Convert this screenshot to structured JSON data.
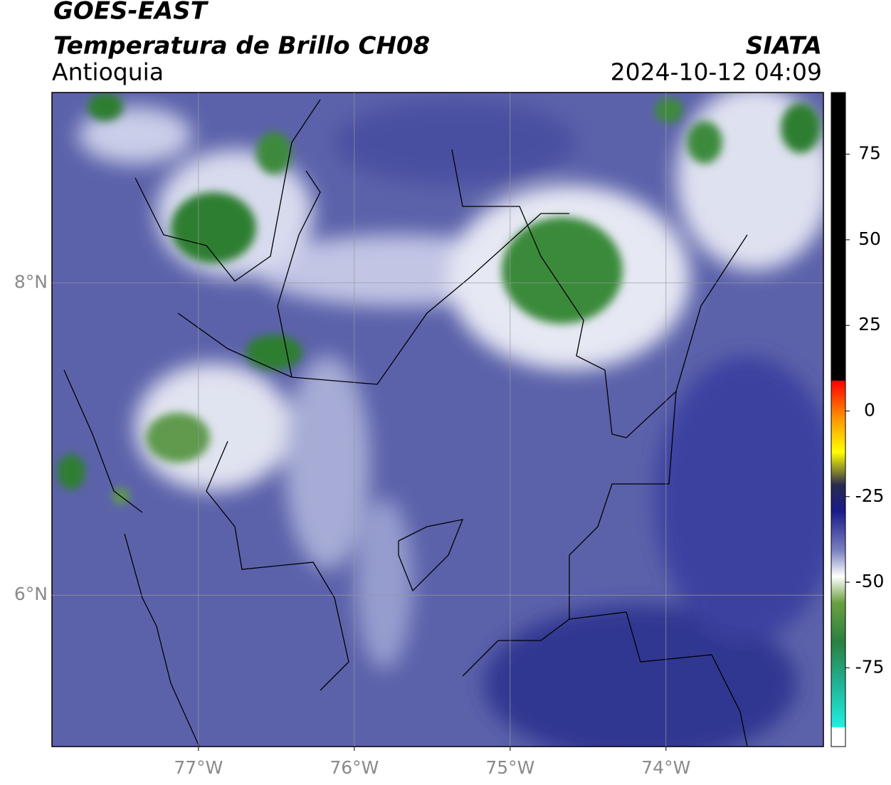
{
  "header": {
    "title": "GOES-EAST",
    "subtitle": "Temperatura de Brillo CH08",
    "region": "Antioquia",
    "source": "SIATA",
    "timestamp": "2024-10-12 04:09"
  },
  "map": {
    "lonlim": [
      -77.94,
      -72.99
    ],
    "latlim": [
      5.03,
      9.22
    ],
    "lon_ticks": [
      {
        "value": -77,
        "label": "77°W"
      },
      {
        "value": -76,
        "label": "76°W"
      },
      {
        "value": -75,
        "label": "75°W"
      },
      {
        "value": -74,
        "label": "74°W"
      }
    ],
    "lat_ticks": [
      {
        "value": 8,
        "label": "8°N"
      },
      {
        "value": 6,
        "label": "6°N"
      }
    ]
  },
  "colorbar": {
    "lim": [
      -98,
      93
    ],
    "ticks": [
      75,
      50,
      25,
      0,
      -25,
      -50,
      -75
    ]
  }
}
